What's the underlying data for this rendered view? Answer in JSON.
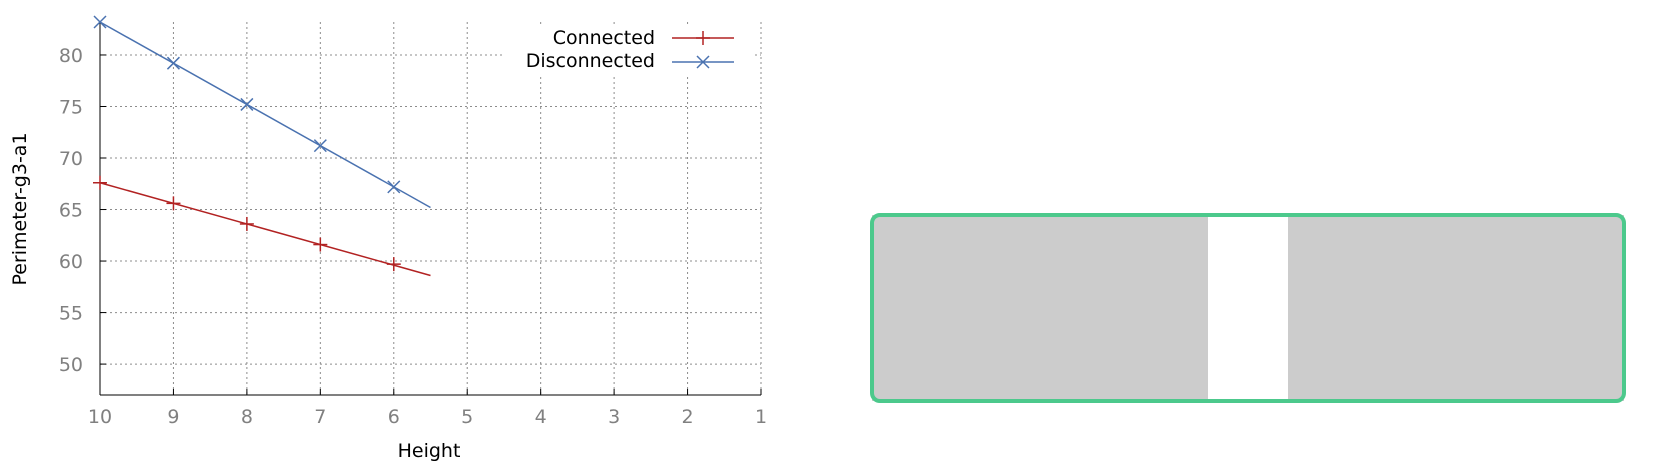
{
  "chart_data": {
    "type": "line",
    "xlabel": "Height",
    "ylabel": "Perimeter-g3-a1",
    "xlim": [
      10,
      1
    ],
    "ylim": [
      47,
      83.2
    ],
    "x_ticks": [
      10,
      9,
      8,
      7,
      6,
      5,
      4,
      3,
      2,
      1
    ],
    "y_ticks": [
      50,
      55,
      60,
      65,
      70,
      75,
      80
    ],
    "grid": true,
    "legend_position": "top-right",
    "series": [
      {
        "name": "Connected",
        "color": "#b22222",
        "marker": "plus",
        "marker_x": [
          10,
          9,
          8,
          7,
          6
        ],
        "marker_y": [
          67.6,
          65.6,
          63.6,
          61.6,
          59.7
        ],
        "line_x": [
          10,
          5.5
        ],
        "line_y": [
          67.6,
          58.6
        ]
      },
      {
        "name": "Disconnected",
        "color": "#4a72b0",
        "marker": "cross",
        "marker_x": [
          10,
          9,
          8,
          7,
          6
        ],
        "marker_y": [
          83.2,
          79.2,
          75.2,
          71.2,
          67.2
        ],
        "line_x": [
          10,
          5.5
        ],
        "line_y": [
          83.2,
          65.2
        ]
      }
    ]
  },
  "colors": {
    "panel_border": "#4cc98c",
    "panel_block": "#cccccc"
  }
}
